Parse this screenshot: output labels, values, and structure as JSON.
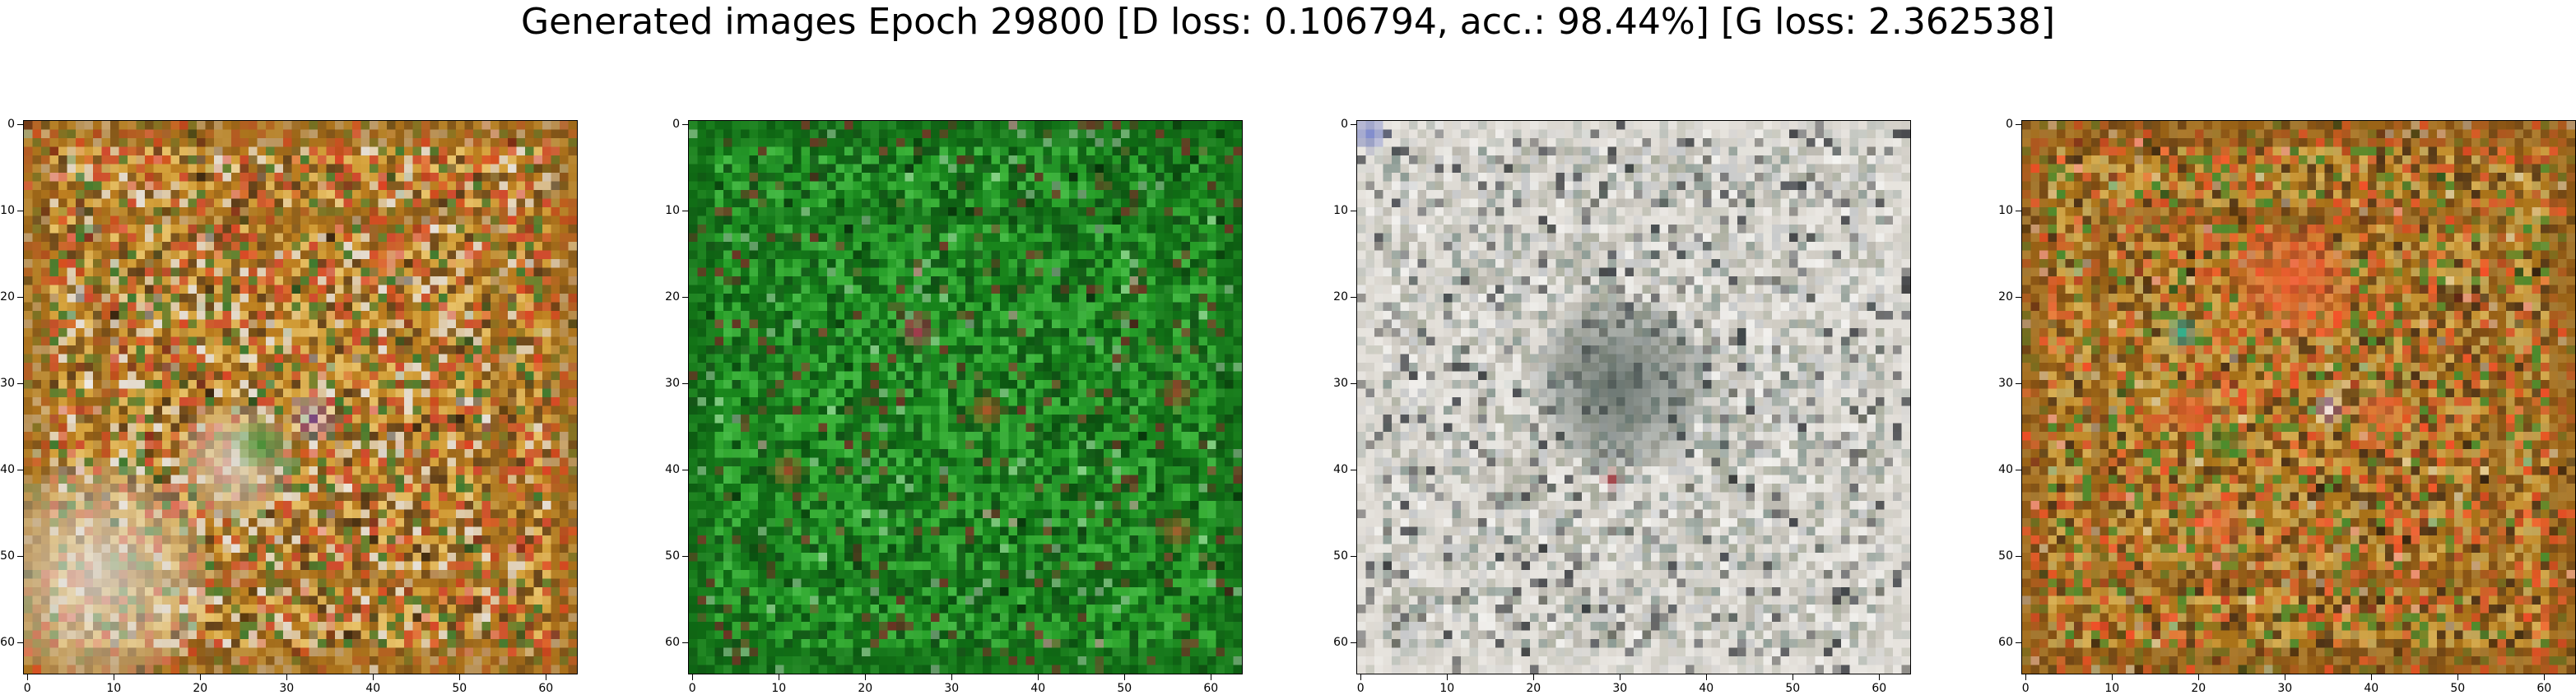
{
  "figure": {
    "title": "Generated images Epoch 29800 [D loss: 0.106794, acc.: 98.44%] [G loss: 2.362538]"
  },
  "axes": {
    "x_ticks": [
      "0",
      "10",
      "20",
      "30",
      "40",
      "50",
      "60"
    ],
    "y_ticks": [
      "0",
      "10",
      "20",
      "30",
      "40",
      "50",
      "60"
    ],
    "image_size": 64
  },
  "panels": [
    {
      "palette": {
        "base": "#c88f2a",
        "colors": [
          "#b97a1d",
          "#d7a53f",
          "#8f5a14",
          "#e9c36a",
          "#5c3b18",
          "#3f7a2f",
          "#d04a2e",
          "#e6e0d8"
        ],
        "accent": "#e04020",
        "frame": "#9d6718"
      },
      "blobs": [
        {
          "type": "white",
          "color": "#e3e0da",
          "cx": 8,
          "cy": 52,
          "r": 13
        },
        {
          "type": "white",
          "color": "#ddd8cf",
          "cx": 24,
          "cy": 39,
          "r": 7
        },
        {
          "type": "green",
          "color": "#2f8a2a",
          "cx": 27,
          "cy": 37,
          "r": 3
        },
        {
          "type": "red",
          "color": "#e05a28",
          "cx": 41,
          "cy": 16,
          "r": 2
        },
        {
          "type": "checker",
          "color": "#6b3a8a",
          "cx": 33,
          "cy": 34,
          "r": 3
        }
      ]
    },
    {
      "palette": {
        "base": "#1f8f1f",
        "colors": [
          "#16801a",
          "#2aa32c",
          "#0e6a14",
          "#3cb43a",
          "#0a4f10",
          "#24952a",
          "#114f16",
          "#46bb46"
        ],
        "accent": "#8a2a2a",
        "frame": "#0e6413"
      },
      "blobs": [
        {
          "type": "red",
          "color": "#c2305a",
          "cx": 26,
          "cy": 24,
          "r": 2
        },
        {
          "type": "red",
          "color": "#c84828",
          "cx": 34,
          "cy": 33,
          "r": 2
        },
        {
          "type": "red",
          "color": "#a43a28",
          "cx": 56,
          "cy": 31,
          "r": 2
        },
        {
          "type": "red",
          "color": "#b84a2c",
          "cx": 11,
          "cy": 40,
          "r": 2
        },
        {
          "type": "red",
          "color": "#b6502c",
          "cx": 56,
          "cy": 47,
          "r": 2
        }
      ]
    },
    {
      "palette": {
        "base": "#d9d6cf",
        "colors": [
          "#cfcbc2",
          "#e8e6e1",
          "#b9b6ad",
          "#a7ab9b",
          "#f2f1ee",
          "#8d9c95",
          "#c7c9cb",
          "#e0dcd6"
        ],
        "accent": "#1a1d24",
        "frame": "#e6e2dc"
      },
      "blobs": [
        {
          "type": "dark",
          "color": "#4f5d58",
          "cx": 30,
          "cy": 30,
          "r": 10
        },
        {
          "type": "red",
          "color": "#b6444a",
          "cx": 29,
          "cy": 41,
          "r": 1
        },
        {
          "type": "blue",
          "color": "#6a78c8",
          "cx": 1,
          "cy": 1,
          "r": 2
        }
      ]
    },
    {
      "palette": {
        "base": "#b98221",
        "colors": [
          "#a66f17",
          "#c99636",
          "#7e4b12",
          "#d8b055",
          "#4e3216",
          "#4a8a2d",
          "#d95a2d",
          "#c3a85b"
        ],
        "accent": "#ff4a28",
        "frame": "#8c5514"
      },
      "blobs": [
        {
          "type": "red",
          "color": "#f35a30",
          "cx": 31,
          "cy": 18,
          "r": 7
        },
        {
          "type": "red",
          "color": "#f05a30",
          "cx": 19,
          "cy": 33,
          "r": 3
        },
        {
          "type": "red",
          "color": "#ef6a36",
          "cx": 41,
          "cy": 33,
          "r": 3
        },
        {
          "type": "red",
          "color": "#f06a38",
          "cx": 22,
          "cy": 46,
          "r": 3
        },
        {
          "type": "green",
          "color": "#2f8a2a",
          "cx": 23,
          "cy": 37,
          "r": 2
        },
        {
          "type": "cyan",
          "color": "#2fb7a3",
          "cx": 18,
          "cy": 24,
          "r": 2
        },
        {
          "type": "checker",
          "color": "#6b3a8a",
          "cx": 35,
          "cy": 33,
          "r": 2
        }
      ]
    }
  ]
}
